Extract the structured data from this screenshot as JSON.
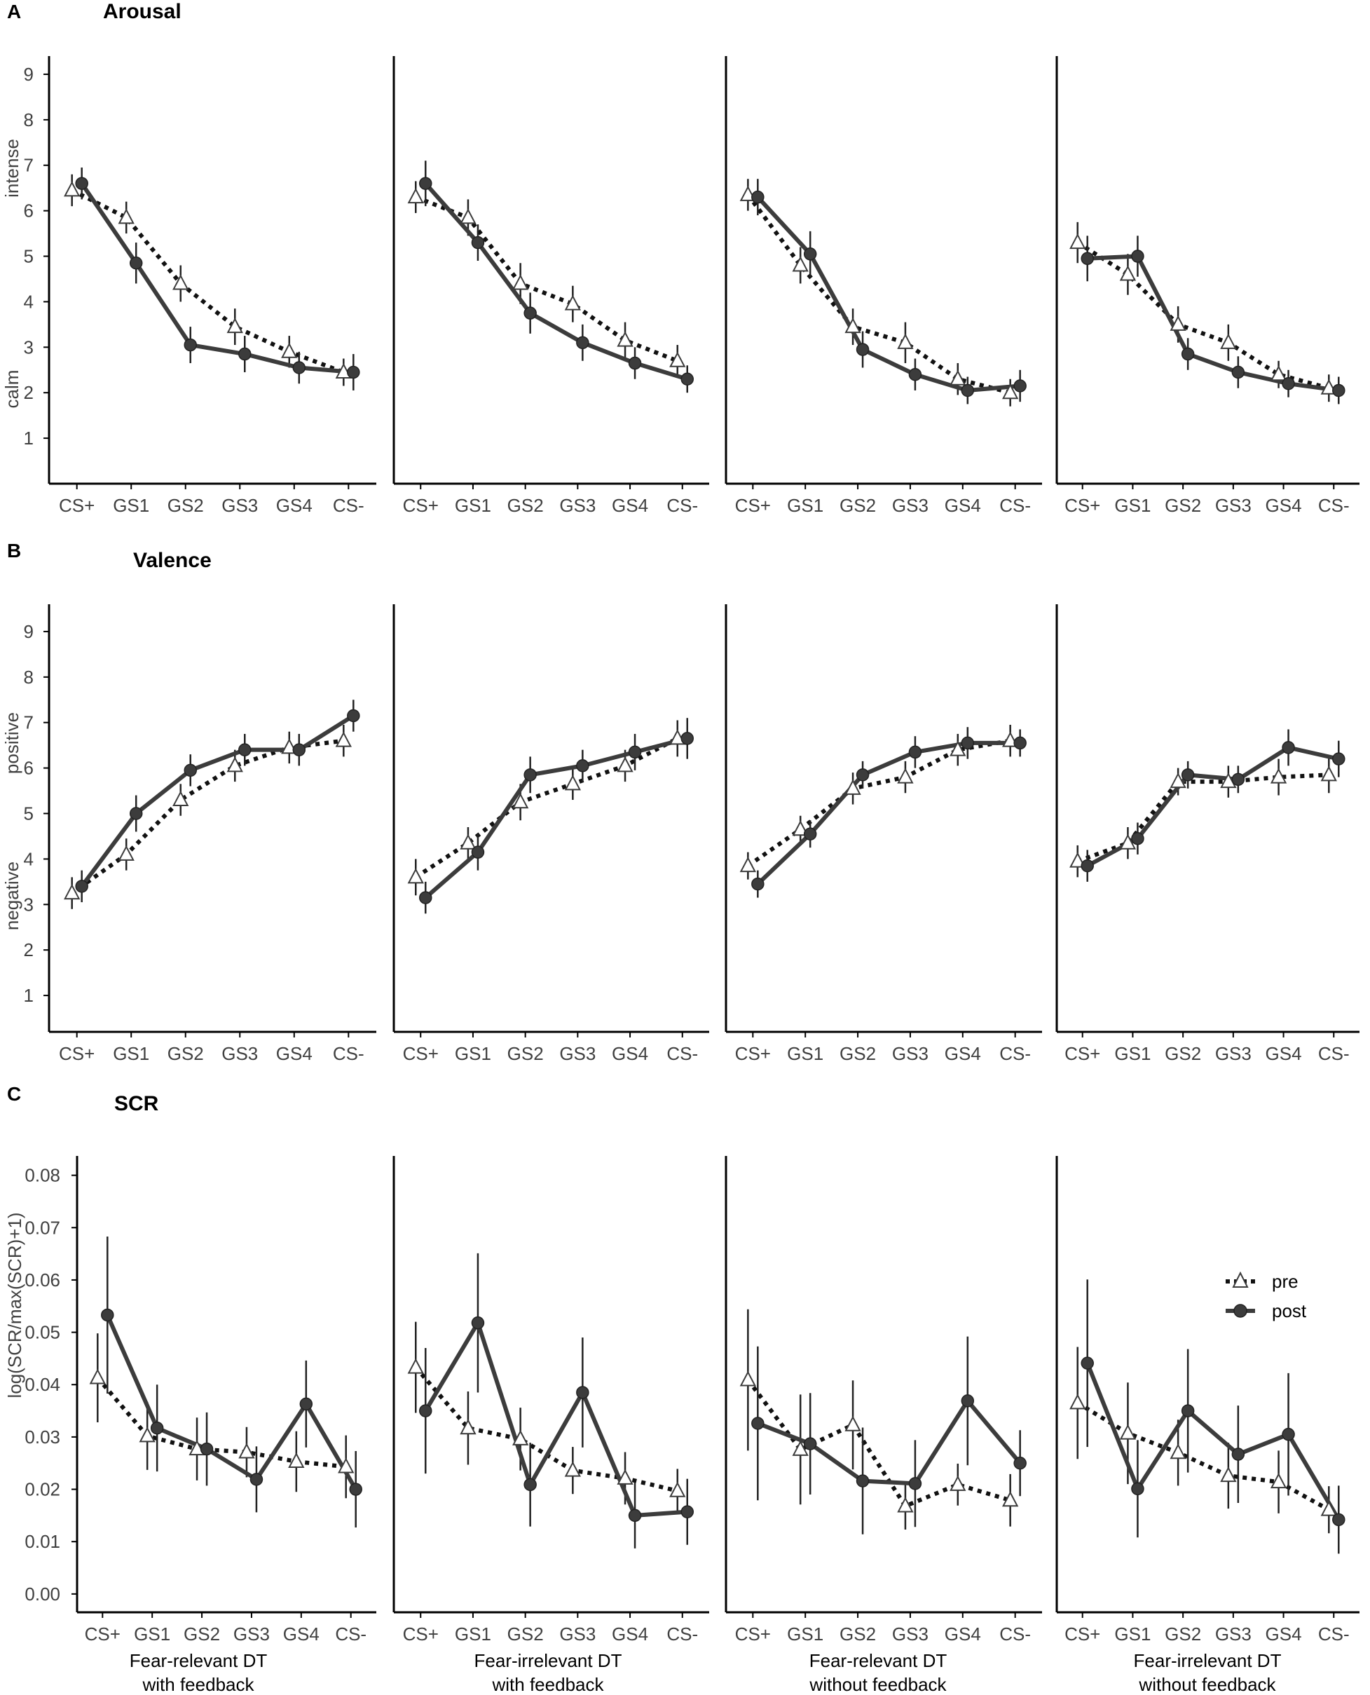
{
  "figure": {
    "rows": [
      {
        "letter": "A",
        "title": "Arousal",
        "y_name_low": "calm",
        "y_name_high": "intense",
        "y_label": ""
      },
      {
        "letter": "B",
        "title": "Valence",
        "y_name_low": "negative",
        "y_name_high": "positive",
        "y_label": ""
      },
      {
        "letter": "C",
        "title": "SCR",
        "y_name_low": "",
        "y_name_high": "",
        "y_label": "log(SCR/max(SCR)+1)"
      }
    ],
    "panel_labels": [
      {
        "line1": "Fear-relevant DT",
        "line2": "with feedback"
      },
      {
        "line1": "Fear-irrelevant DT",
        "line2": "with feedback"
      },
      {
        "line1": "Fear-relevant DT",
        "line2": "without feedback"
      },
      {
        "line1": "Fear-irrelevant DT",
        "line2": "without feedback"
      }
    ],
    "legend": {
      "pre": "pre",
      "post": "post",
      "position": "right, inside last SCR panel"
    },
    "colors": {
      "post": "#3c3c3c",
      "pre": "#111111",
      "axis": "#000000",
      "text": "#404040"
    }
  },
  "chart_data": [
    {
      "type": "line",
      "title": "Arousal",
      "ylabel": "",
      "ylim": [
        0,
        9.4
      ],
      "yticks": [
        1,
        2,
        3,
        4,
        5,
        6,
        7,
        8,
        9
      ],
      "categories": [
        "CS+",
        "GS1",
        "GS2",
        "GS3",
        "GS4",
        "CS-"
      ],
      "panels": [
        {
          "name": "Fear-relevant DT with feedback",
          "series": [
            {
              "name": "pre",
              "values": [
                6.45,
                5.85,
                4.4,
                3.45,
                2.9,
                2.45
              ],
              "err": [
                0.35,
                0.35,
                0.4,
                0.4,
                0.35,
                0.3
              ]
            },
            {
              "name": "post",
              "values": [
                6.6,
                4.85,
                3.05,
                2.85,
                2.55,
                2.45
              ],
              "err": [
                0.35,
                0.45,
                0.4,
                0.4,
                0.35,
                0.4
              ]
            }
          ]
        },
        {
          "name": "Fear-irrelevant DT with feedback",
          "series": [
            {
              "name": "pre",
              "values": [
                6.3,
                5.85,
                4.4,
                3.95,
                3.15,
                2.7
              ],
              "err": [
                0.35,
                0.4,
                0.45,
                0.4,
                0.4,
                0.35
              ]
            },
            {
              "name": "post",
              "values": [
                6.6,
                5.3,
                3.75,
                3.1,
                2.65,
                2.3
              ],
              "err": [
                0.5,
                0.4,
                0.45,
                0.4,
                0.35,
                0.3
              ]
            }
          ]
        },
        {
          "name": "Fear-relevant DT without feedback",
          "series": [
            {
              "name": "pre",
              "values": [
                6.35,
                4.8,
                3.45,
                3.1,
                2.3,
                2.0
              ],
              "err": [
                0.35,
                0.4,
                0.4,
                0.45,
                0.35,
                0.3
              ]
            },
            {
              "name": "post",
              "values": [
                6.3,
                5.05,
                2.95,
                2.4,
                2.05,
                2.15
              ],
              "err": [
                0.4,
                0.5,
                0.4,
                0.35,
                0.3,
                0.35
              ]
            }
          ]
        },
        {
          "name": "Fear-irrelevant DT without feedback",
          "series": [
            {
              "name": "pre",
              "values": [
                5.3,
                4.6,
                3.5,
                3.1,
                2.4,
                2.1
              ],
              "err": [
                0.45,
                0.45,
                0.4,
                0.4,
                0.3,
                0.3
              ]
            },
            {
              "name": "post",
              "values": [
                4.95,
                5.0,
                2.85,
                2.45,
                2.2,
                2.05
              ],
              "err": [
                0.5,
                0.45,
                0.35,
                0.35,
                0.3,
                0.3
              ]
            }
          ]
        }
      ]
    },
    {
      "type": "line",
      "title": "Valence",
      "ylabel": "",
      "ylim": [
        0.2,
        9.6
      ],
      "yticks": [
        1,
        2,
        3,
        4,
        5,
        6,
        7,
        8,
        9
      ],
      "categories": [
        "CS+",
        "GS1",
        "GS2",
        "GS3",
        "GS4",
        "CS-"
      ],
      "panels": [
        {
          "name": "Fear-relevant DT with feedback",
          "series": [
            {
              "name": "pre",
              "values": [
                3.25,
                4.1,
                5.3,
                6.05,
                6.45,
                6.6
              ],
              "err": [
                0.35,
                0.35,
                0.35,
                0.35,
                0.35,
                0.35
              ]
            },
            {
              "name": "post",
              "values": [
                3.4,
                5.0,
                5.95,
                6.4,
                6.4,
                7.15
              ],
              "err": [
                0.35,
                0.4,
                0.35,
                0.35,
                0.35,
                0.35
              ]
            }
          ]
        },
        {
          "name": "Fear-irrelevant DT with feedback",
          "series": [
            {
              "name": "pre",
              "values": [
                3.6,
                4.35,
                5.25,
                5.65,
                6.05,
                6.65
              ],
              "err": [
                0.4,
                0.35,
                0.4,
                0.35,
                0.35,
                0.4
              ]
            },
            {
              "name": "post",
              "values": [
                3.15,
                4.15,
                5.85,
                6.05,
                6.35,
                6.65
              ],
              "err": [
                0.35,
                0.4,
                0.4,
                0.35,
                0.4,
                0.45
              ]
            }
          ]
        },
        {
          "name": "Fear-relevant DT without feedback",
          "series": [
            {
              "name": "pre",
              "values": [
                3.85,
                4.65,
                5.55,
                5.8,
                6.4,
                6.6
              ],
              "err": [
                0.3,
                0.3,
                0.35,
                0.35,
                0.35,
                0.35
              ]
            },
            {
              "name": "post",
              "values": [
                3.45,
                4.55,
                5.85,
                6.35,
                6.55,
                6.55
              ],
              "err": [
                0.3,
                0.3,
                0.3,
                0.35,
                0.35,
                0.3
              ]
            }
          ]
        },
        {
          "name": "Fear-irrelevant DT without feedback",
          "series": [
            {
              "name": "pre",
              "values": [
                3.95,
                4.35,
                5.7,
                5.7,
                5.8,
                5.85
              ],
              "err": [
                0.35,
                0.35,
                0.3,
                0.35,
                0.4,
                0.4
              ]
            },
            {
              "name": "post",
              "values": [
                3.85,
                4.45,
                5.85,
                5.75,
                6.45,
                6.2
              ],
              "err": [
                0.35,
                0.35,
                0.3,
                0.3,
                0.4,
                0.4
              ]
            }
          ]
        }
      ]
    },
    {
      "type": "line",
      "title": "SCR",
      "ylabel": "log(SCR/max(SCR)+1)",
      "ylim": [
        -0.0035,
        0.0837
      ],
      "yticks": [
        0.0,
        0.01,
        0.02,
        0.03,
        0.04,
        0.05,
        0.06,
        0.07,
        0.08
      ],
      "yticklabels": [
        "0.00",
        "0.01",
        "0.02",
        "0.03",
        "0.04",
        "0.05",
        "0.06",
        "0.07",
        "0.08"
      ],
      "categories": [
        "CS+",
        "GS1",
        "GS2",
        "GS3",
        "GS4",
        "CS-"
      ],
      "panels": [
        {
          "name": "Fear-relevant DT with feedback",
          "series": [
            {
              "name": "pre",
              "values": [
                0.0413,
                0.0302,
                0.0277,
                0.0271,
                0.0253,
                0.0243
              ],
              "err": [
                0.0085,
                0.0065,
                0.006,
                0.0048,
                0.0058,
                0.006
              ]
            },
            {
              "name": "post",
              "values": [
                0.0533,
                0.0317,
                0.0277,
                0.0219,
                0.0363,
                0.02
              ],
              "err": [
                0.015,
                0.0083,
                0.007,
                0.0063,
                0.0083,
                0.0073
              ]
            }
          ]
        },
        {
          "name": "Fear-irrelevant DT with feedback",
          "series": [
            {
              "name": "pre",
              "values": [
                0.0433,
                0.0317,
                0.0296,
                0.0236,
                0.0221,
                0.0197
              ],
              "err": [
                0.0087,
                0.007,
                0.006,
                0.0045,
                0.005,
                0.0042
              ]
            },
            {
              "name": "post",
              "values": [
                0.035,
                0.0518,
                0.0209,
                0.0385,
                0.015,
                0.0157
              ],
              "err": [
                0.012,
                0.0133,
                0.008,
                0.0105,
                0.0063,
                0.0063
              ]
            }
          ]
        },
        {
          "name": "Fear-relevant DT without feedback",
          "series": [
            {
              "name": "pre",
              "values": [
                0.0409,
                0.0276,
                0.0323,
                0.0168,
                0.0209,
                0.0179
              ],
              "err": [
                0.0135,
                0.0105,
                0.0085,
                0.0045,
                0.004,
                0.005
              ]
            },
            {
              "name": "post",
              "values": [
                0.0326,
                0.0287,
                0.0216,
                0.0211,
                0.0369,
                0.025
              ],
              "err": [
                0.0147,
                0.0097,
                0.0102,
                0.0083,
                0.0123,
                0.0063
              ]
            }
          ]
        },
        {
          "name": "Fear-irrelevant DT without feedback",
          "series": [
            {
              "name": "pre",
              "values": [
                0.0365,
                0.0307,
                0.027,
                0.0226,
                0.0214,
                0.0161
              ],
              "err": [
                0.0107,
                0.0097,
                0.0063,
                0.0063,
                0.006,
                0.0045
              ]
            },
            {
              "name": "post",
              "values": [
                0.0441,
                0.0201,
                0.035,
                0.0267,
                0.0305,
                0.0142
              ],
              "err": [
                0.016,
                0.0093,
                0.0118,
                0.0093,
                0.0117,
                0.0065
              ]
            }
          ]
        }
      ]
    }
  ]
}
